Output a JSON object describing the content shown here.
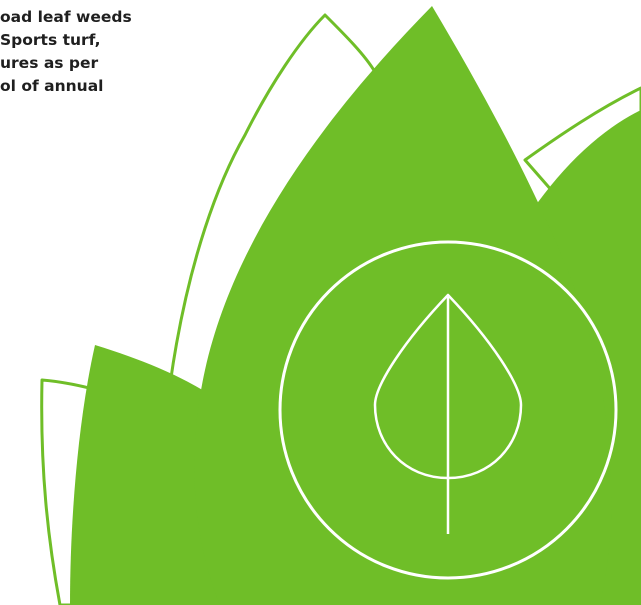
{
  "text": {
    "lines": [
      "oad leaf weeds",
      "Sports turf,",
      "ures as per",
      "ol of annual"
    ]
  },
  "colors": {
    "leaf": "#6fbe28",
    "outline": "#6fbe28",
    "icon_line": "#ffffff",
    "text": "#1f1f1f"
  },
  "icon": "leaf-in-circle-icon"
}
